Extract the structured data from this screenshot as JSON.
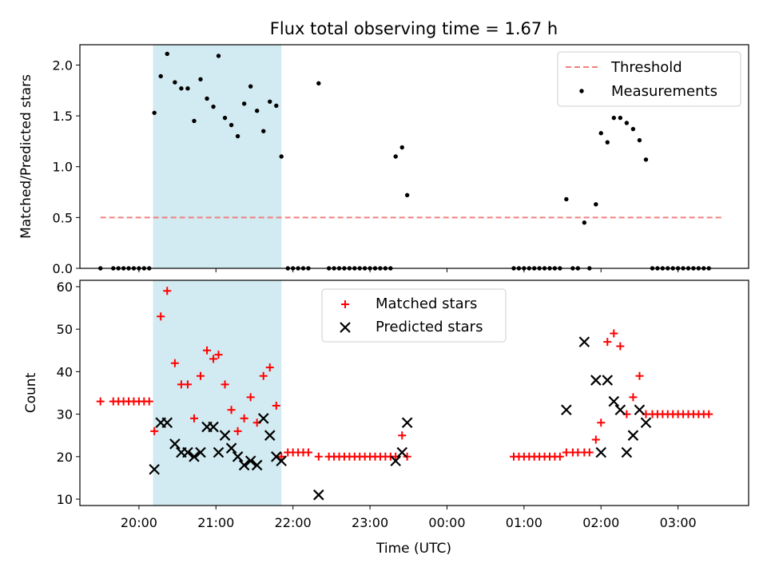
{
  "figure": {
    "title": "Flux total observing time = 1.67 h",
    "xlabel": "Time (UTC)"
  },
  "colors": {
    "threshold": "#f08080",
    "measurement": "#000000",
    "matched": "#ff0000",
    "predicted": "#000000",
    "highlight": "#add8e6"
  },
  "chart_data": [
    {
      "type": "scatter",
      "ylabel": "Matched/Predicted stars",
      "ylim": [
        0,
        2.2
      ],
      "xlim": [
        "19:14",
        "03:55"
      ],
      "yticks": [
        "0.0",
        "0.5",
        "1.0",
        "1.5",
        "2.0"
      ],
      "highlight_span": [
        "20:11",
        "21:51"
      ],
      "legend": {
        "position": "top-right",
        "entries": [
          "Threshold",
          "Measurements"
        ]
      },
      "threshold": {
        "name": "Threshold",
        "value": 0.5,
        "x_range": [
          "19:30",
          "03:35"
        ]
      },
      "series": [
        {
          "name": "Measurements",
          "points": [
            [
              "19:30",
              0.0
            ],
            [
              "19:40",
              0.0
            ],
            [
              "19:44",
              0.0
            ],
            [
              "19:48",
              0.0
            ],
            [
              "19:52",
              0.0
            ],
            [
              "19:56",
              0.0
            ],
            [
              "20:00",
              0.0
            ],
            [
              "20:04",
              0.0
            ],
            [
              "20:08",
              0.0
            ],
            [
              "20:12",
              1.53
            ],
            [
              "20:17",
              1.89
            ],
            [
              "20:22",
              2.11
            ],
            [
              "20:28",
              1.83
            ],
            [
              "20:33",
              1.77
            ],
            [
              "20:38",
              1.77
            ],
            [
              "20:43",
              1.45
            ],
            [
              "20:48",
              1.86
            ],
            [
              "20:53",
              1.67
            ],
            [
              "20:58",
              1.59
            ],
            [
              "21:02",
              2.09
            ],
            [
              "21:07",
              1.48
            ],
            [
              "21:12",
              1.41
            ],
            [
              "21:17",
              1.3
            ],
            [
              "21:22",
              1.62
            ],
            [
              "21:27",
              1.79
            ],
            [
              "21:32",
              1.55
            ],
            [
              "21:37",
              1.35
            ],
            [
              "21:42",
              1.64
            ],
            [
              "21:47",
              1.6
            ],
            [
              "21:51",
              1.1
            ],
            [
              "21:56",
              0.0
            ],
            [
              "22:00",
              0.0
            ],
            [
              "22:04",
              0.0
            ],
            [
              "22:08",
              0.0
            ],
            [
              "22:12",
              0.0
            ],
            [
              "22:20",
              1.82
            ],
            [
              "22:28",
              0.0
            ],
            [
              "22:32",
              0.0
            ],
            [
              "22:36",
              0.0
            ],
            [
              "22:40",
              0.0
            ],
            [
              "22:44",
              0.0
            ],
            [
              "22:48",
              0.0
            ],
            [
              "22:52",
              0.0
            ],
            [
              "22:56",
              0.0
            ],
            [
              "23:00",
              0.0
            ],
            [
              "23:04",
              0.0
            ],
            [
              "23:08",
              0.0
            ],
            [
              "23:12",
              0.0
            ],
            [
              "23:16",
              0.0
            ],
            [
              "23:20",
              1.1
            ],
            [
              "23:25",
              1.19
            ],
            [
              "23:29",
              0.72
            ],
            [
              "00:52",
              0.0
            ],
            [
              "00:56",
              0.0
            ],
            [
              "01:00",
              0.0
            ],
            [
              "01:04",
              0.0
            ],
            [
              "01:08",
              0.0
            ],
            [
              "01:12",
              0.0
            ],
            [
              "01:16",
              0.0
            ],
            [
              "01:20",
              0.0
            ],
            [
              "01:24",
              0.0
            ],
            [
              "01:28",
              0.0
            ],
            [
              "01:33",
              0.68
            ],
            [
              "01:38",
              0.0
            ],
            [
              "01:42",
              0.0
            ],
            [
              "01:47",
              0.45
            ],
            [
              "01:51",
              0.0
            ],
            [
              "01:56",
              0.63
            ],
            [
              "02:00",
              1.33
            ],
            [
              "02:05",
              1.24
            ],
            [
              "02:10",
              1.48
            ],
            [
              "02:15",
              1.48
            ],
            [
              "02:20",
              1.43
            ],
            [
              "02:25",
              1.37
            ],
            [
              "02:30",
              1.26
            ],
            [
              "02:35",
              1.07
            ],
            [
              "02:40",
              0.0
            ],
            [
              "02:44",
              0.0
            ],
            [
              "02:48",
              0.0
            ],
            [
              "02:52",
              0.0
            ],
            [
              "02:56",
              0.0
            ],
            [
              "03:00",
              0.0
            ],
            [
              "03:04",
              0.0
            ],
            [
              "03:08",
              0.0
            ],
            [
              "03:12",
              0.0
            ],
            [
              "03:16",
              0.0
            ],
            [
              "03:20",
              0.0
            ],
            [
              "03:24",
              0.0
            ]
          ]
        }
      ]
    },
    {
      "type": "scatter",
      "ylabel": "Count",
      "ylim": [
        8.5,
        61.5
      ],
      "xlim": [
        "19:14",
        "03:55"
      ],
      "yticks": [
        "10",
        "20",
        "30",
        "40",
        "50",
        "60"
      ],
      "xticks": [
        "20:00",
        "21:00",
        "22:00",
        "23:00",
        "00:00",
        "01:00",
        "02:00",
        "03:00"
      ],
      "highlight_span": [
        "20:11",
        "21:51"
      ],
      "legend": {
        "position": "top-center",
        "entries": [
          "Matched stars",
          "Predicted stars"
        ]
      },
      "series": [
        {
          "name": "Matched stars",
          "marker": "+",
          "points": [
            [
              "19:30",
              33
            ],
            [
              "19:40",
              33
            ],
            [
              "19:44",
              33
            ],
            [
              "19:48",
              33
            ],
            [
              "19:52",
              33
            ],
            [
              "19:56",
              33
            ],
            [
              "20:00",
              33
            ],
            [
              "20:04",
              33
            ],
            [
              "20:08",
              33
            ],
            [
              "20:12",
              26
            ],
            [
              "20:17",
              53
            ],
            [
              "20:22",
              59
            ],
            [
              "20:28",
              42
            ],
            [
              "20:33",
              37
            ],
            [
              "20:38",
              37
            ],
            [
              "20:43",
              29
            ],
            [
              "20:48",
              39
            ],
            [
              "20:53",
              45
            ],
            [
              "20:58",
              43
            ],
            [
              "21:02",
              44
            ],
            [
              "21:07",
              37
            ],
            [
              "21:12",
              31
            ],
            [
              "21:17",
              26
            ],
            [
              "21:22",
              29
            ],
            [
              "21:27",
              34
            ],
            [
              "21:32",
              28
            ],
            [
              "21:37",
              39
            ],
            [
              "21:42",
              41
            ],
            [
              "21:47",
              32
            ],
            [
              "21:51",
              20
            ],
            [
              "21:56",
              21
            ],
            [
              "22:00",
              21
            ],
            [
              "22:04",
              21
            ],
            [
              "22:08",
              21
            ],
            [
              "22:12",
              21
            ],
            [
              "22:20",
              20
            ],
            [
              "22:28",
              20
            ],
            [
              "22:32",
              20
            ],
            [
              "22:36",
              20
            ],
            [
              "22:40",
              20
            ],
            [
              "22:44",
              20
            ],
            [
              "22:48",
              20
            ],
            [
              "22:52",
              20
            ],
            [
              "22:56",
              20
            ],
            [
              "23:00",
              20
            ],
            [
              "23:04",
              20
            ],
            [
              "23:08",
              20
            ],
            [
              "23:12",
              20
            ],
            [
              "23:16",
              20
            ],
            [
              "23:20",
              20
            ],
            [
              "23:25",
              25
            ],
            [
              "23:29",
              20
            ],
            [
              "00:52",
              20
            ],
            [
              "00:56",
              20
            ],
            [
              "01:00",
              20
            ],
            [
              "01:04",
              20
            ],
            [
              "01:08",
              20
            ],
            [
              "01:12",
              20
            ],
            [
              "01:16",
              20
            ],
            [
              "01:20",
              20
            ],
            [
              "01:24",
              20
            ],
            [
              "01:28",
              20
            ],
            [
              "01:33",
              21
            ],
            [
              "01:38",
              21
            ],
            [
              "01:42",
              21
            ],
            [
              "01:47",
              21
            ],
            [
              "01:51",
              21
            ],
            [
              "01:56",
              24
            ],
            [
              "02:00",
              28
            ],
            [
              "02:05",
              47
            ],
            [
              "02:10",
              49
            ],
            [
              "02:15",
              46
            ],
            [
              "02:20",
              30
            ],
            [
              "02:25",
              34
            ],
            [
              "02:30",
              39
            ],
            [
              "02:35",
              30
            ],
            [
              "02:40",
              30
            ],
            [
              "02:44",
              30
            ],
            [
              "02:48",
              30
            ],
            [
              "02:52",
              30
            ],
            [
              "02:56",
              30
            ],
            [
              "03:00",
              30
            ],
            [
              "03:04",
              30
            ],
            [
              "03:08",
              30
            ],
            [
              "03:12",
              30
            ],
            [
              "03:16",
              30
            ],
            [
              "03:20",
              30
            ],
            [
              "03:24",
              30
            ]
          ]
        },
        {
          "name": "Predicted stars",
          "marker": "x",
          "points": [
            [
              "20:12",
              17
            ],
            [
              "20:17",
              28
            ],
            [
              "20:22",
              28
            ],
            [
              "20:28",
              23
            ],
            [
              "20:33",
              21
            ],
            [
              "20:38",
              21
            ],
            [
              "20:43",
              20
            ],
            [
              "20:48",
              21
            ],
            [
              "20:53",
              27
            ],
            [
              "20:58",
              27
            ],
            [
              "21:02",
              21
            ],
            [
              "21:07",
              25
            ],
            [
              "21:12",
              22
            ],
            [
              "21:17",
              20
            ],
            [
              "21:22",
              18
            ],
            [
              "21:27",
              19
            ],
            [
              "21:32",
              18
            ],
            [
              "21:37",
              29
            ],
            [
              "21:42",
              25
            ],
            [
              "21:47",
              20
            ],
            [
              "21:51",
              19
            ],
            [
              "22:20",
              11
            ],
            [
              "23:20",
              19
            ],
            [
              "23:25",
              21
            ],
            [
              "23:29",
              28
            ],
            [
              "01:33",
              31
            ],
            [
              "01:47",
              47
            ],
            [
              "01:56",
              38
            ],
            [
              "02:00",
              21
            ],
            [
              "02:05",
              38
            ],
            [
              "02:10",
              33
            ],
            [
              "02:15",
              31
            ],
            [
              "02:20",
              21
            ],
            [
              "02:25",
              25
            ],
            [
              "02:30",
              31
            ],
            [
              "02:35",
              28
            ]
          ]
        }
      ]
    }
  ]
}
